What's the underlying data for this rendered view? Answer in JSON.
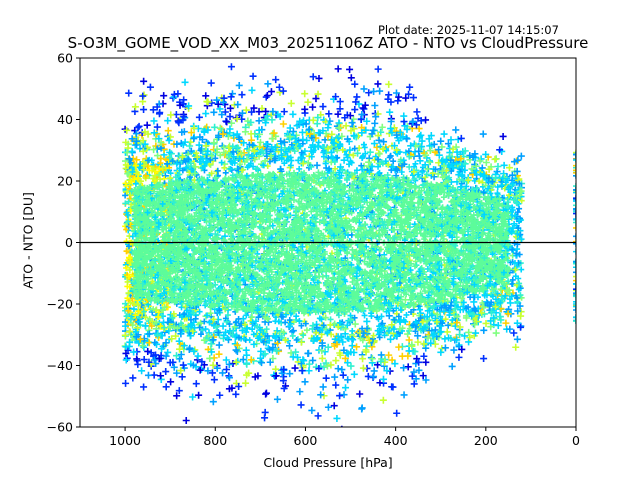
{
  "plot_date": "Plot date: 2025-11-07 14:15:07",
  "chart_data": {
    "type": "scatter",
    "title": "S-O3M_GOME_VOD_XX_M03_20251106Z ATO - NTO vs CloudPressure",
    "xlabel": "Cloud Pressure [hPa]",
    "ylabel": "ATO - NTO [DU]",
    "xlim": [
      1100,
      0
    ],
    "ylim": [
      -60,
      60
    ],
    "x_inverted": true,
    "xticks": [
      1000,
      800,
      600,
      400,
      200,
      0
    ],
    "xtick_labels": [
      "1000",
      "800",
      "600",
      "400",
      "200",
      "0"
    ],
    "yticks": [
      -60,
      -40,
      -20,
      0,
      20,
      40,
      60
    ],
    "ytick_labels": [
      "−60",
      "−40",
      "−20",
      "0",
      "20",
      "40",
      "60"
    ],
    "reference_line_y": 0,
    "grid": false,
    "marker": "plus",
    "colormap": "jet",
    "colors": {
      "core": "#5dfc9a",
      "cyan": "#00d8ff",
      "lightblue": "#00a0ff",
      "blue": "#0030ff",
      "darkblue": "#0000e0",
      "yellowgreen": "#c8ff30",
      "yellow": "#ffff00",
      "gold": "#ffd000",
      "green": "#80ff80",
      "teal": "#30f0d0"
    },
    "distribution": {
      "x_range": [
        1000,
        120
      ],
      "core_y_range": [
        -25,
        25
      ],
      "spread_y_range": [
        -60,
        60
      ],
      "edge_column_x": 0,
      "edge_column_y_range": [
        -27,
        30
      ]
    },
    "sample_points": [
      {
        "x": 950,
        "y": 0
      },
      {
        "x": 900,
        "y": 10
      },
      {
        "x": 850,
        "y": -12
      },
      {
        "x": 800,
        "y": 25
      },
      {
        "x": 750,
        "y": -30
      },
      {
        "x": 700,
        "y": 35
      },
      {
        "x": 650,
        "y": -45
      },
      {
        "x": 620,
        "y": 58
      },
      {
        "x": 600,
        "y": 5
      },
      {
        "x": 550,
        "y": -20
      },
      {
        "x": 500,
        "y": 48
      },
      {
        "x": 450,
        "y": -35
      },
      {
        "x": 400,
        "y": 20
      },
      {
        "x": 350,
        "y": -10
      },
      {
        "x": 300,
        "y": 15
      },
      {
        "x": 250,
        "y": -30
      },
      {
        "x": 200,
        "y": 18
      },
      {
        "x": 150,
        "y": -5
      },
      {
        "x": 120,
        "y": 10
      },
      {
        "x": 0,
        "y": 25
      },
      {
        "x": 0,
        "y": -20
      }
    ]
  }
}
